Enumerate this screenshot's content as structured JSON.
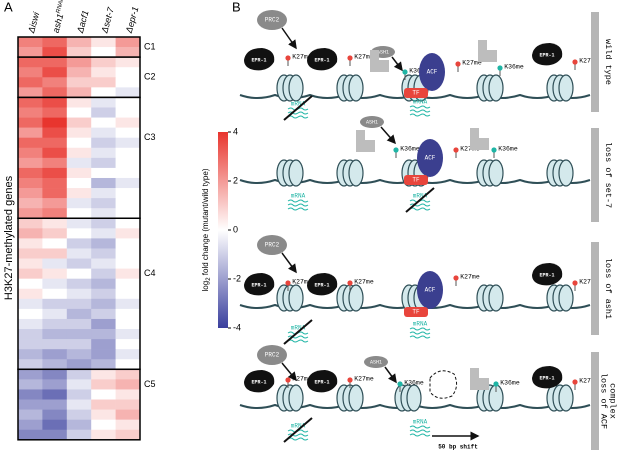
{
  "panel_a": {
    "label": "A",
    "y_label": "H3K27-methylated genes",
    "columns": [
      {
        "text": "Δiswi"
      },
      {
        "text": "ash1",
        "sup": "RNAi"
      },
      {
        "text": "Δacf1"
      },
      {
        "text": "Δset-7"
      },
      {
        "text": "Δepr-1"
      }
    ],
    "clim": [
      -4,
      4
    ],
    "colorbar_ticks": [
      4,
      2,
      0,
      -2,
      -4
    ],
    "colorbar_label": {
      "prefix": "log",
      "sub": "2",
      "rest": " fold change (mutant/wild type)"
    },
    "clusters": [
      {
        "label": "C1",
        "rows": [
          [
            2.5,
            3,
            1.5,
            0.5,
            2
          ],
          [
            2,
            3.5,
            1,
            0,
            1.5
          ]
        ]
      },
      {
        "label": "C2",
        "rows": [
          [
            3,
            3,
            2,
            1,
            0.5
          ],
          [
            2.5,
            3.5,
            1.5,
            0.5,
            0
          ],
          [
            3,
            2.5,
            1,
            1,
            0
          ],
          [
            2,
            3,
            1.5,
            0,
            -0.5
          ]
        ]
      },
      {
        "label": "C3",
        "rows": [
          [
            3,
            3.5,
            0.5,
            -0.5,
            0
          ],
          [
            2.5,
            3,
            0,
            -1,
            0
          ],
          [
            3,
            4,
            1,
            0,
            0.5
          ],
          [
            2,
            3.5,
            0.5,
            -0.5,
            0
          ],
          [
            3,
            3,
            0,
            -1,
            -0.5
          ],
          [
            2.5,
            3.5,
            0.5,
            -0.5,
            0
          ],
          [
            2,
            2.5,
            -0.5,
            -1,
            0
          ],
          [
            3,
            3.5,
            0.5,
            0,
            0
          ],
          [
            2.5,
            3,
            0,
            -1.5,
            -0.5
          ],
          [
            2,
            3,
            0.5,
            -0.5,
            0
          ],
          [
            1.5,
            2,
            -0.5,
            -1,
            0
          ],
          [
            2,
            2.5,
            0,
            -0.5,
            0
          ]
        ]
      },
      {
        "label": "C4",
        "rows": [
          [
            1,
            0.5,
            -0.5,
            -1,
            0
          ],
          [
            1.5,
            1,
            0,
            -0.5,
            0.5
          ],
          [
            0.5,
            0,
            -1,
            -1.5,
            0
          ],
          [
            1,
            1,
            -0.5,
            -1,
            0
          ],
          [
            0.5,
            -0.5,
            -1,
            -0.5,
            0
          ],
          [
            1,
            0.5,
            0,
            -1,
            0.5
          ],
          [
            0,
            -0.5,
            -1,
            -1.5,
            0
          ],
          [
            0.5,
            0,
            -0.5,
            -1,
            0
          ],
          [
            -0.5,
            -1,
            -1,
            -1.5,
            -0.5
          ],
          [
            0,
            -0.5,
            -1.5,
            -1,
            0
          ],
          [
            -0.5,
            -1,
            -1,
            -2,
            0
          ],
          [
            -1,
            -1.5,
            -1.5,
            -1.5,
            -0.5
          ],
          [
            -1,
            -1,
            -1,
            -2,
            0
          ],
          [
            -1.5,
            -2,
            -1.5,
            -2,
            -0.5
          ],
          [
            -1,
            -1.5,
            -2,
            -1.5,
            0
          ]
        ]
      },
      {
        "label": "C5",
        "rows": [
          [
            -2,
            -2.5,
            -1,
            0.5,
            1
          ],
          [
            -1.5,
            -2,
            -0.5,
            1,
            1.5
          ],
          [
            -2.5,
            -3,
            -1,
            0,
            0.5
          ],
          [
            -2,
            -2,
            -0.5,
            1,
            1
          ],
          [
            -1.5,
            -2.5,
            -1,
            0.5,
            1.5
          ],
          [
            -2,
            -3,
            -1.5,
            0,
            0.5
          ],
          [
            -2.5,
            -2.5,
            -1,
            0.5,
            1
          ]
        ]
      }
    ]
  },
  "panel_b": {
    "label": "B",
    "labels": {
      "prc2": "PRC2",
      "ash1": "ASH1",
      "acf": "ACF",
      "tf": "TF",
      "epr": "EPR-1",
      "k27": "K27me",
      "k36": "K36me",
      "mrna": "mRNA",
      "shift": "50 bp shift"
    },
    "conditions": [
      [
        "wild type"
      ],
      [
        "loss of set-7"
      ],
      [
        "loss of ash1"
      ],
      [
        "loss of ACF",
        "complex"
      ]
    ]
  }
}
